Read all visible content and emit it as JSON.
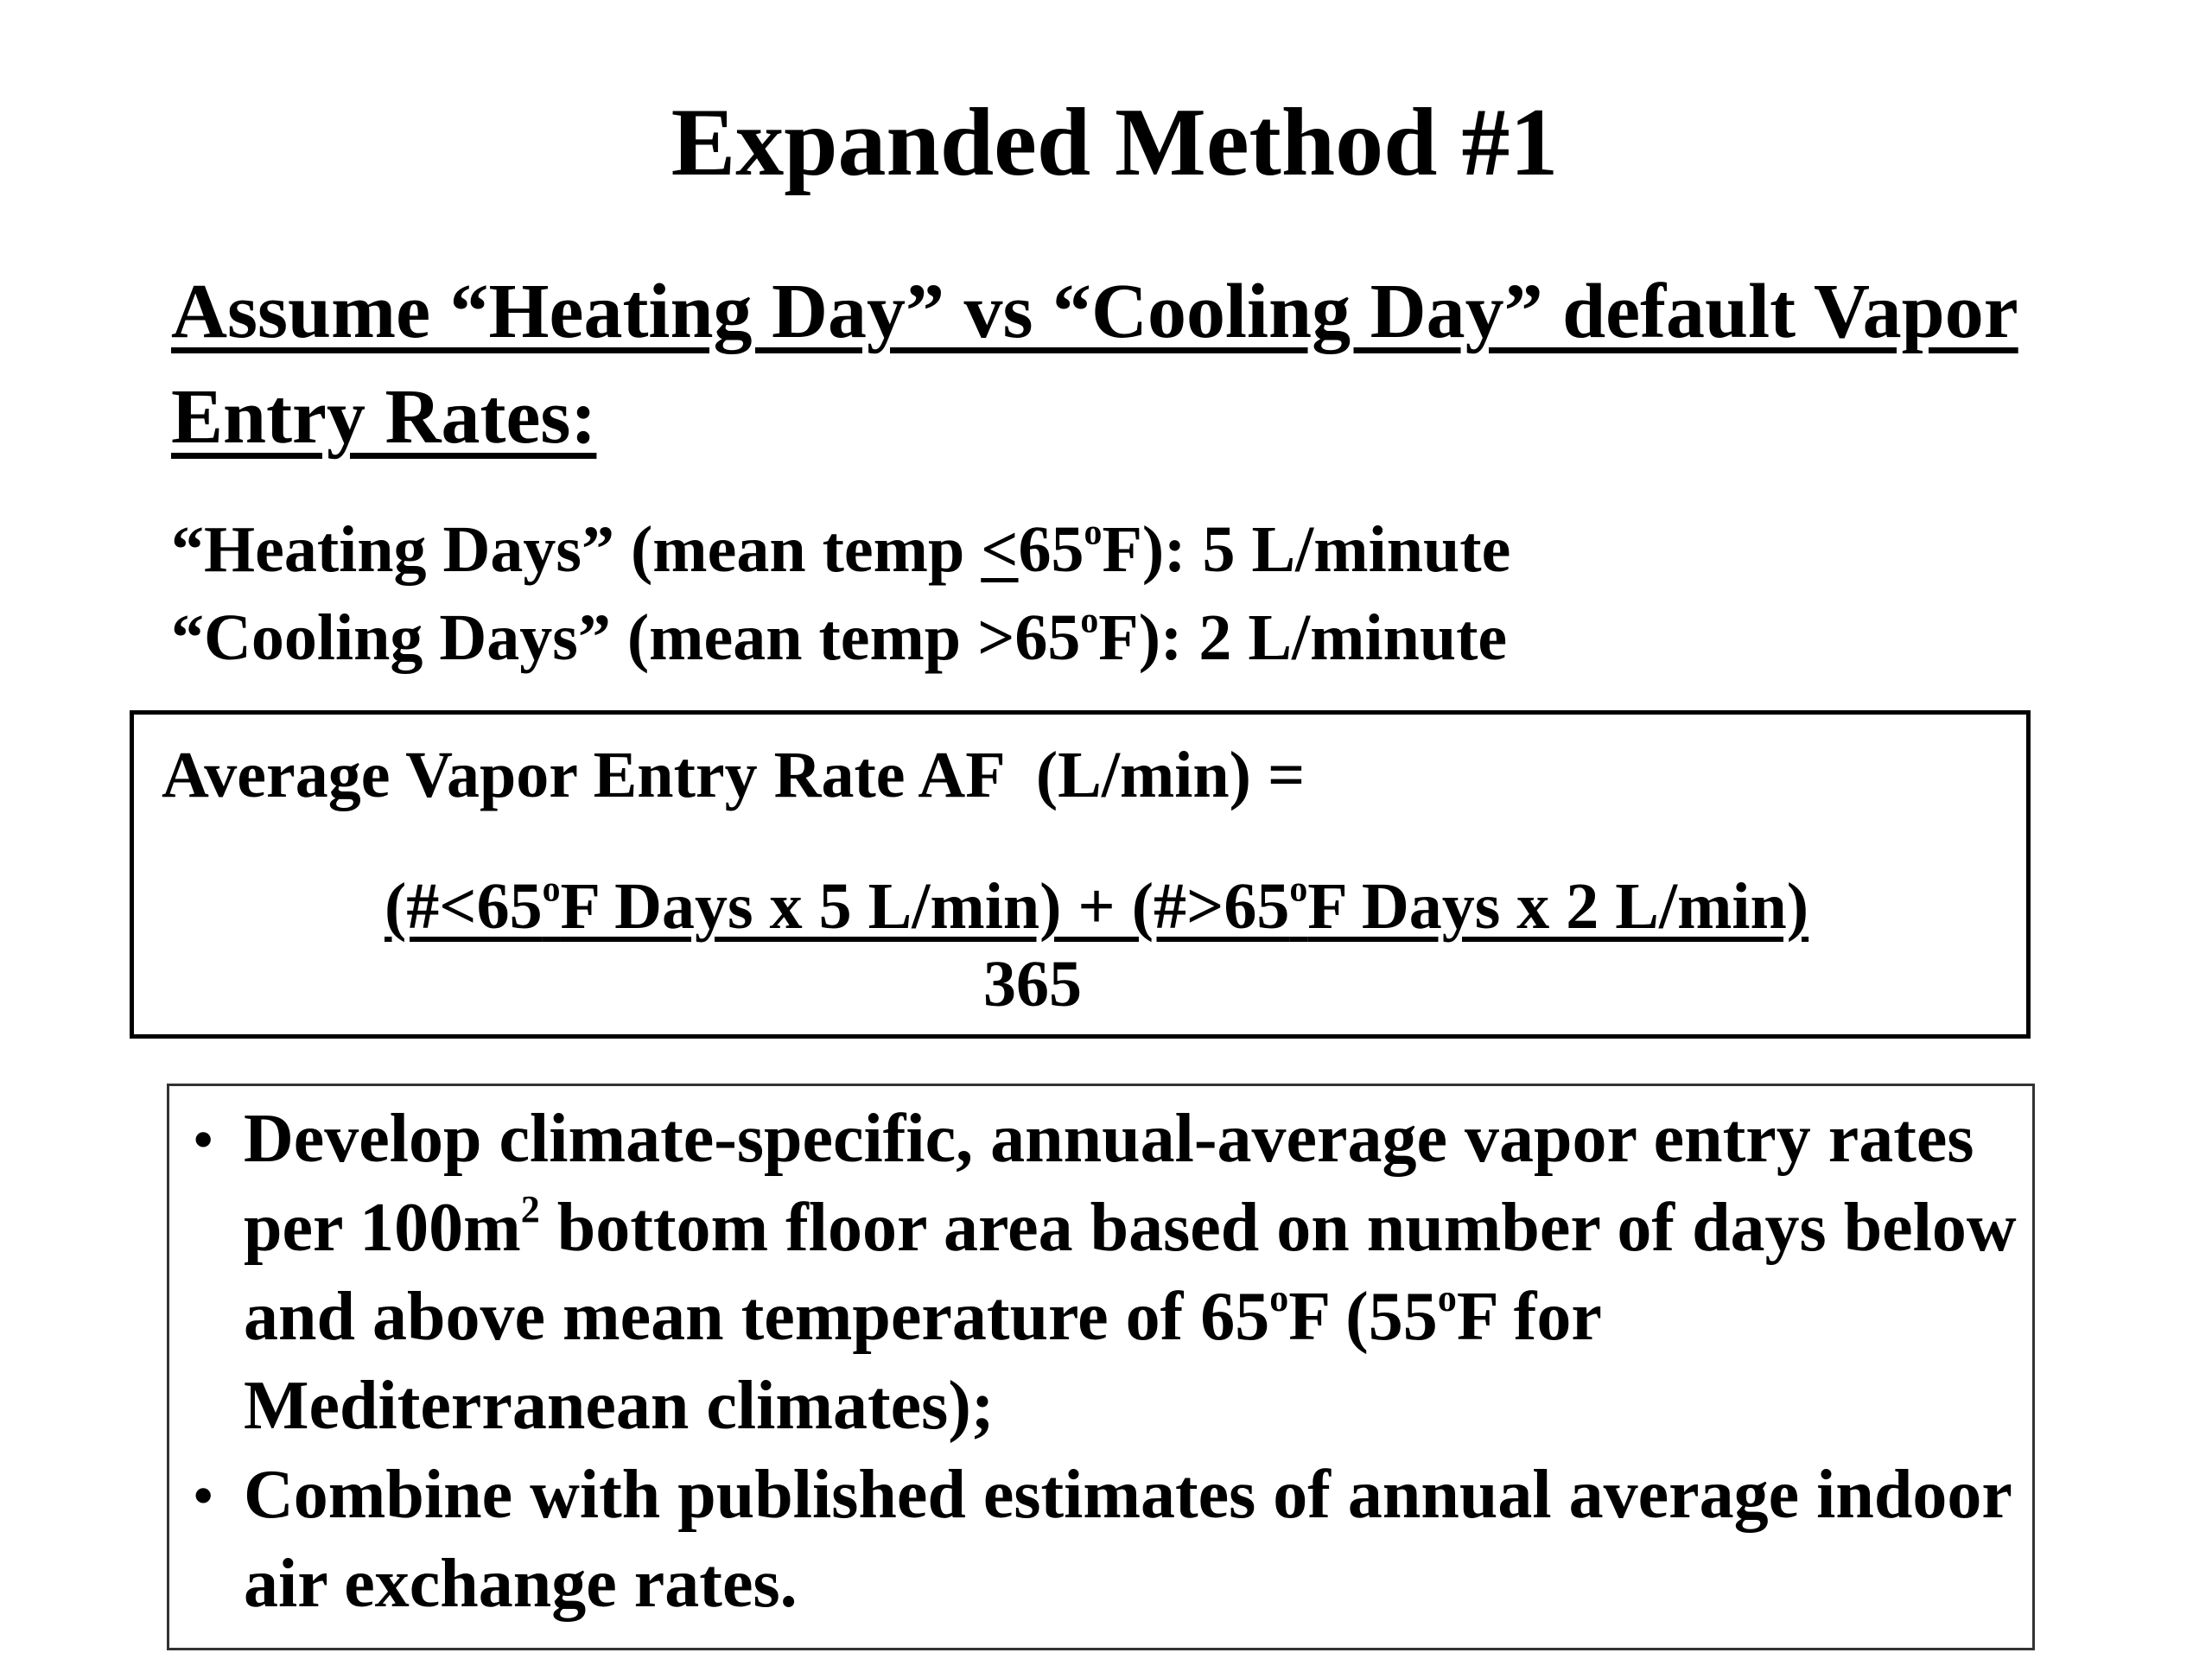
{
  "slide": {
    "title": "Expanded Method #1",
    "assume_heading": "Assume “Heating Day” vs “Cooling Day” default Vapor Entry Rates:",
    "rates": {
      "heating": {
        "prefix": "“Heating Days” (mean temp ",
        "symbol": "<",
        "value": "65",
        "degree": "o",
        "suffix": "F): 5 L/minute"
      },
      "cooling": {
        "prefix": "“Cooling Days” (mean temp >65",
        "degree": "o",
        "suffix": "F): 2 L/minute"
      }
    },
    "formula": {
      "label": "Average Vapor Entry Rate AF  (L/min) =",
      "numerator_part1": "(#<65",
      "numerator_degree1": "o",
      "numerator_part2": "F Days x 5 L/min) + (#>65",
      "numerator_degree2": "o",
      "numerator_part3": "F Days x 2 L/min)",
      "denominator": "365"
    },
    "bullets": {
      "marker": "•",
      "item1_part1": "Develop climate-specific, annual-average vapor entry rates per 100m",
      "item1_sup": "2",
      "item1_part2": " bottom floor area based on number of days below and above mean temperature of 65",
      "item1_degree1": "o",
      "item1_part3": "F (55",
      "item1_degree2": "o",
      "item1_part4": "F for Mediterranean climates);",
      "item2": "Combine with published estimates of annual average indoor air exchange rates."
    }
  }
}
